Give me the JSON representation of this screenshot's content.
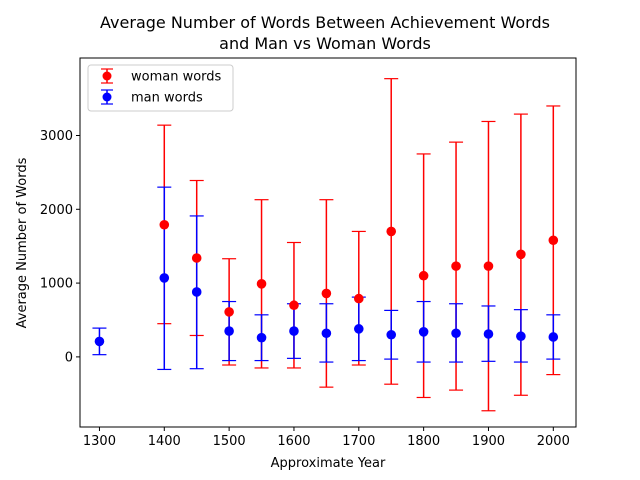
{
  "chart_data": {
    "type": "scatter",
    "title": [
      "Average Number of Words Between Achievement Words",
      "and Man vs Woman Words"
    ],
    "xlabel": "Approximate Year",
    "ylabel": "Average Number of Words",
    "xlim": [
      1270,
      2035
    ],
    "ylim": [
      -950,
      4050
    ],
    "xticks": [
      1300,
      1400,
      1500,
      1600,
      1700,
      1800,
      1900,
      2000
    ],
    "yticks": [
      0,
      1000,
      2000,
      3000
    ],
    "legend_position": "top-left",
    "grid": false,
    "series": [
      {
        "name": "woman words",
        "color": "#ff0000",
        "points": [
          {
            "x": 1400,
            "y": 1790,
            "low": 450,
            "high": 3140
          },
          {
            "x": 1450,
            "y": 1340,
            "low": 290,
            "high": 2390
          },
          {
            "x": 1500,
            "y": 610,
            "low": -110,
            "high": 1330
          },
          {
            "x": 1550,
            "y": 990,
            "low": -150,
            "high": 2130
          },
          {
            "x": 1600,
            "y": 700,
            "low": -150,
            "high": 1550
          },
          {
            "x": 1650,
            "y": 860,
            "low": -410,
            "high": 2130
          },
          {
            "x": 1700,
            "y": 790,
            "low": -110,
            "high": 1700
          },
          {
            "x": 1750,
            "y": 1700,
            "low": -370,
            "high": 3770
          },
          {
            "x": 1800,
            "y": 1100,
            "low": -550,
            "high": 2750
          },
          {
            "x": 1850,
            "y": 1230,
            "low": -450,
            "high": 2910
          },
          {
            "x": 1900,
            "y": 1230,
            "low": -730,
            "high": 3190
          },
          {
            "x": 1950,
            "y": 1390,
            "low": -520,
            "high": 3290
          },
          {
            "x": 2000,
            "y": 1580,
            "low": -240,
            "high": 3400
          }
        ]
      },
      {
        "name": "man words",
        "color": "#0000ff",
        "points": [
          {
            "x": 1300,
            "y": 210,
            "low": 30,
            "high": 390
          },
          {
            "x": 1400,
            "y": 1070,
            "low": -170,
            "high": 2300
          },
          {
            "x": 1450,
            "y": 880,
            "low": -160,
            "high": 1910
          },
          {
            "x": 1500,
            "y": 350,
            "low": -50,
            "high": 750
          },
          {
            "x": 1550,
            "y": 260,
            "low": -50,
            "high": 570
          },
          {
            "x": 1600,
            "y": 350,
            "low": -20,
            "high": 720
          },
          {
            "x": 1650,
            "y": 320,
            "low": -70,
            "high": 720
          },
          {
            "x": 1700,
            "y": 380,
            "low": -50,
            "high": 810
          },
          {
            "x": 1750,
            "y": 300,
            "low": -30,
            "high": 630
          },
          {
            "x": 1800,
            "y": 340,
            "low": -70,
            "high": 750
          },
          {
            "x": 1850,
            "y": 320,
            "low": -70,
            "high": 720
          },
          {
            "x": 1900,
            "y": 310,
            "low": -60,
            "high": 690
          },
          {
            "x": 1950,
            "y": 280,
            "low": -70,
            "high": 640
          },
          {
            "x": 2000,
            "y": 270,
            "low": -30,
            "high": 570
          }
        ]
      }
    ]
  }
}
